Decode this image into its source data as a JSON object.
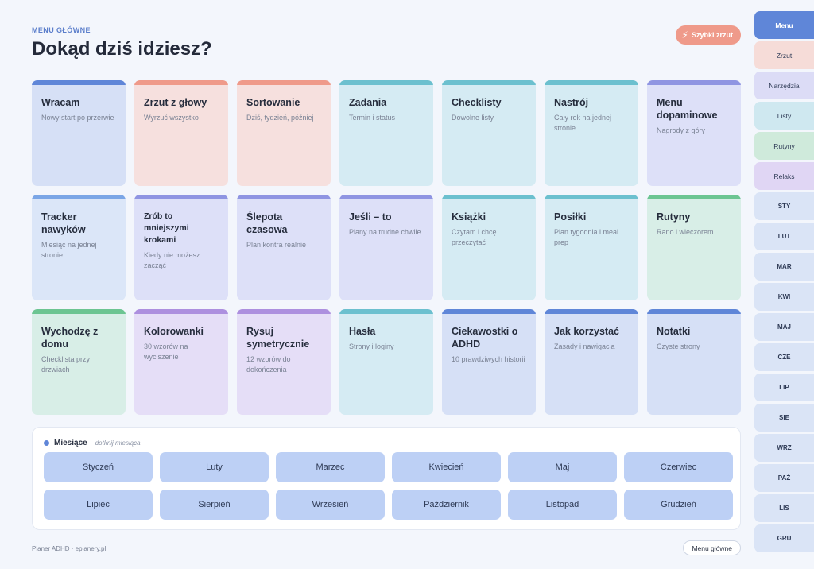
{
  "header": {
    "eyebrow": "MENU GŁÓWNE",
    "title": "Dokąd dziś idziesz?",
    "quick_button": "Szybki zrzut"
  },
  "cards": [
    {
      "title": "Wracam",
      "subtitle": "Nowy start po przerwie"
    },
    {
      "title": "Zrzut z głowy",
      "subtitle": "Wyrzuć wszystko"
    },
    {
      "title": "Sortowanie",
      "subtitle": "Dziś, tydzień, później"
    },
    {
      "title": "Zadania",
      "subtitle": "Termin i status"
    },
    {
      "title": "Checklisty",
      "subtitle": "Dowolne listy"
    },
    {
      "title": "Nastrój",
      "subtitle": "Cały rok na jednej stronie"
    },
    {
      "title": "Menu dopaminowe",
      "subtitle": "Nagrody z góry"
    },
    {
      "title": "Tracker nawyków",
      "subtitle": "Miesiąc na jednej stronie"
    },
    {
      "title": "Zrób to mniejszymi krokami",
      "subtitle": "Kiedy nie możesz zacząć"
    },
    {
      "title": "Ślepota czasowa",
      "subtitle": "Plan kontra realnie"
    },
    {
      "title": "Jeśli – to",
      "subtitle": "Plany na trudne chwile"
    },
    {
      "title": "Książki",
      "subtitle": "Czytam i chcę przeczytać"
    },
    {
      "title": "Posiłki",
      "subtitle": "Plan tygodnia i meal prep"
    },
    {
      "title": "Rutyny",
      "subtitle": "Rano i wieczorem"
    },
    {
      "title": "Wychodzę z domu",
      "subtitle": "Checklista przy drzwiach"
    },
    {
      "title": "Kolorowanki",
      "subtitle": "30 wzorów na wyciszenie"
    },
    {
      "title": "Rysuj symetrycznie",
      "subtitle": "12 wzorów do dokończenia"
    },
    {
      "title": "Hasła",
      "subtitle": "Strony i loginy"
    },
    {
      "title": "Ciekawostki o ADHD",
      "subtitle": "10 prawdziwych historii"
    },
    {
      "title": "Jak korzystać",
      "subtitle": "Zasady i nawigacja"
    },
    {
      "title": "Notatki",
      "subtitle": "Czyste strony"
    }
  ],
  "months": {
    "heading": "Miesiące",
    "hint": "dotknij miesiąca",
    "items": [
      "Styczeń",
      "Luty",
      "Marzec",
      "Kwiecień",
      "Maj",
      "Czerwiec",
      "Lipiec",
      "Sierpień",
      "Wrzesień",
      "Październik",
      "Listopad",
      "Grudzień"
    ]
  },
  "footer": {
    "brand": "Planer ADHD · eplanery.pl",
    "button": "Menu główne"
  },
  "sidebar": {
    "tabs": [
      "Menu",
      "Zrzut",
      "Narzędzia",
      "Listy",
      "Rutyny",
      "Relaks",
      "STY",
      "LUT",
      "MAR",
      "KWI",
      "MAJ",
      "CZE",
      "LIP",
      "SIE",
      "WRZ",
      "PAŹ",
      "LIS",
      "GRU"
    ]
  },
  "colors": {
    "accent": "#5f86d8",
    "peach": "#ef9a8a",
    "teal": "#6cc0cf",
    "lavender": "#8f95e2",
    "green": "#6cc592",
    "purple": "#ad90df"
  }
}
